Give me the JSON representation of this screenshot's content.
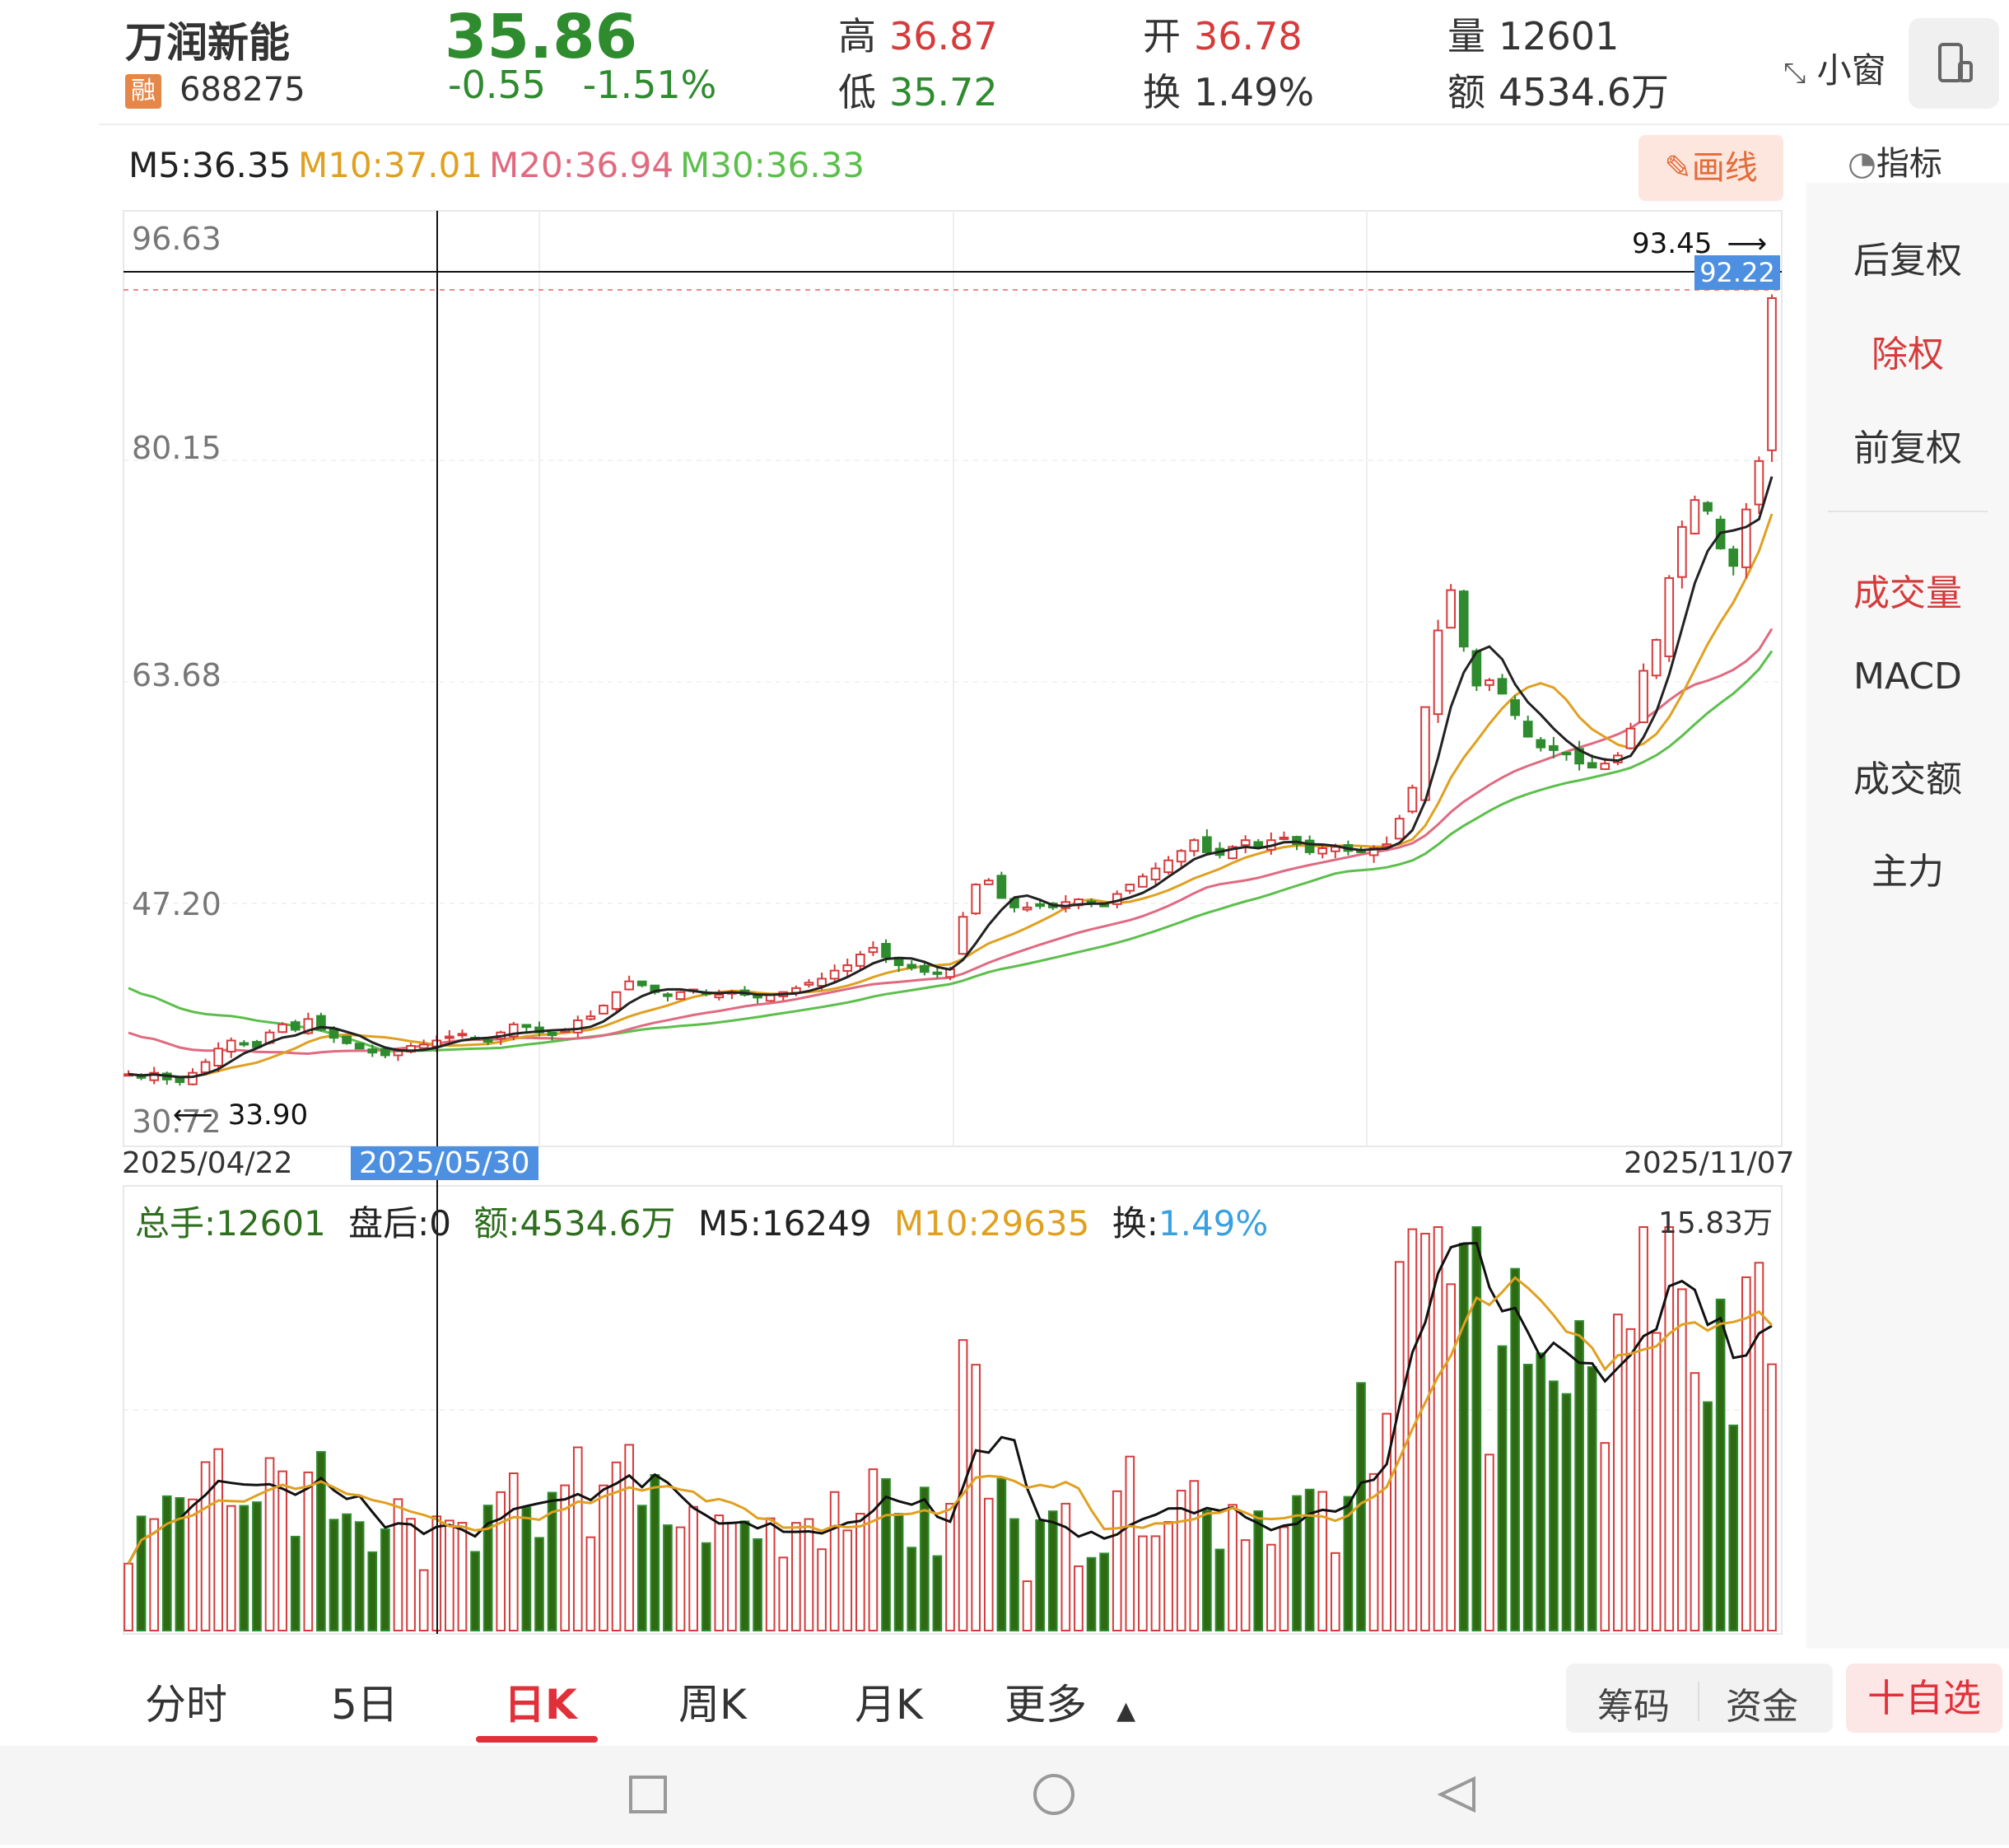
{
  "header": {
    "stock_name": "万润新能",
    "rz_badge": "融",
    "code": "688275",
    "price": "35.86",
    "change": "-0.55",
    "change_pct": "-1.51%",
    "high_label": "高",
    "high_value": "36.87",
    "low_label": "低",
    "low_value": "35.72",
    "open_label": "开",
    "open_value": "36.78",
    "turnover_label": "换",
    "turnover_value": "1.49%",
    "volume_label": "量",
    "volume_value": "12601",
    "amount_label": "额",
    "amount_value": "4534.6万",
    "small_window": "小窗",
    "colors": {
      "up": "#d63b3b",
      "down": "#2e8b2e"
    }
  },
  "ma_bar": {
    "m5": "M5:36.35",
    "m10": "M10:37.01",
    "m20": "M20:36.94",
    "m30": "M30:36.33",
    "draw_button": "画线",
    "indicator_label": "指标",
    "colors": {
      "m5": "#222222",
      "m10": "#e0a020",
      "m20": "#e06a80",
      "m30": "#5cbf4c"
    }
  },
  "right_panel": {
    "items": [
      {
        "label": "后复权",
        "active": false
      },
      {
        "label": "除权",
        "active": true
      },
      {
        "label": "前复权",
        "active": false
      },
      {
        "label": "成交量",
        "active": true
      },
      {
        "label": "MACD",
        "active": false
      },
      {
        "label": "成交额",
        "active": false
      },
      {
        "label": "主力",
        "active": false
      }
    ]
  },
  "price_chart": {
    "axis_labels": [
      "96.63",
      "80.15",
      "63.68",
      "47.20",
      "30.72"
    ],
    "max_label": "93.45",
    "min_label": "33.90",
    "crosshair_price": "92.22",
    "date_start": "2025/04/22",
    "date_cursor": "2025/05/30",
    "date_end": "2025/11/07"
  },
  "volume_chart": {
    "total_hand": "总手:12601",
    "after_hours": "盘后:0",
    "amount": "额:4534.6万",
    "m5": "M5:16249",
    "m10": "M10:29635",
    "turnover_label": "换:",
    "turnover_value": "1.49%",
    "max_label": "15.83万"
  },
  "chart_data": {
    "type": "candlestick",
    "start_date": "2025/04/22",
    "end_date": "2025/11/07",
    "ylim": [
      30.72,
      96.63
    ],
    "close_path": [
      34.5,
      34.3,
      34.6,
      34.1,
      33.9,
      34.6,
      35.4,
      36.4,
      37.0,
      36.8,
      36.5,
      37.6,
      38.2,
      37.8,
      38.6,
      37.8,
      37.2,
      36.8,
      36.4,
      36.1,
      35.9,
      36.2,
      36.6,
      36.7,
      37.0,
      37.3,
      37.5,
      37.2,
      37.0,
      37.6,
      38.2,
      38.0,
      37.6,
      37.4,
      37.8,
      38.5,
      38.8,
      39.6,
      40.6,
      41.4,
      41.1,
      40.6,
      40.3,
      40.6,
      40.8,
      40.5,
      40.4,
      40.6,
      40.4,
      40.2,
      40.4,
      40.6,
      40.9,
      41.3,
      41.6,
      42.2,
      42.6,
      43.4,
      43.9,
      43.2,
      42.6,
      42.4,
      42.1,
      42.0,
      42.3,
      46.2,
      48.6,
      48.9,
      47.6,
      46.9,
      46.9,
      47.0,
      46.9,
      47.3,
      47.5,
      47.2,
      47.0,
      47.9,
      48.6,
      49.2,
      49.8,
      50.4,
      51.1,
      51.9,
      51.0,
      50.8,
      51.4,
      51.9,
      51.4,
      51.9,
      52.1,
      51.6,
      51.0,
      51.3,
      51.4,
      51.1,
      51.0,
      51.3,
      51.6,
      53.5,
      55.8,
      61.8,
      67.5,
      70.5,
      66.3,
      63.4,
      63.8,
      62.8,
      61.2,
      59.6,
      58.8,
      58.6,
      58.4,
      57.6,
      57.3,
      57.6,
      58.2,
      60.2,
      64.5,
      66.8,
      71.4,
      75.2,
      77.2,
      76.4,
      73.6,
      72.3,
      76.5,
      80.1,
      92.22
    ],
    "volume_series_desc": "daily volume bars, max axis label 15.83万"
  },
  "bottom_tabs": {
    "items": [
      "分时",
      "5日",
      "日K",
      "周K",
      "月K",
      "更多"
    ],
    "active": "日K",
    "chip_left": "筹码",
    "chip_right": "资金",
    "favorite": "十自选"
  }
}
